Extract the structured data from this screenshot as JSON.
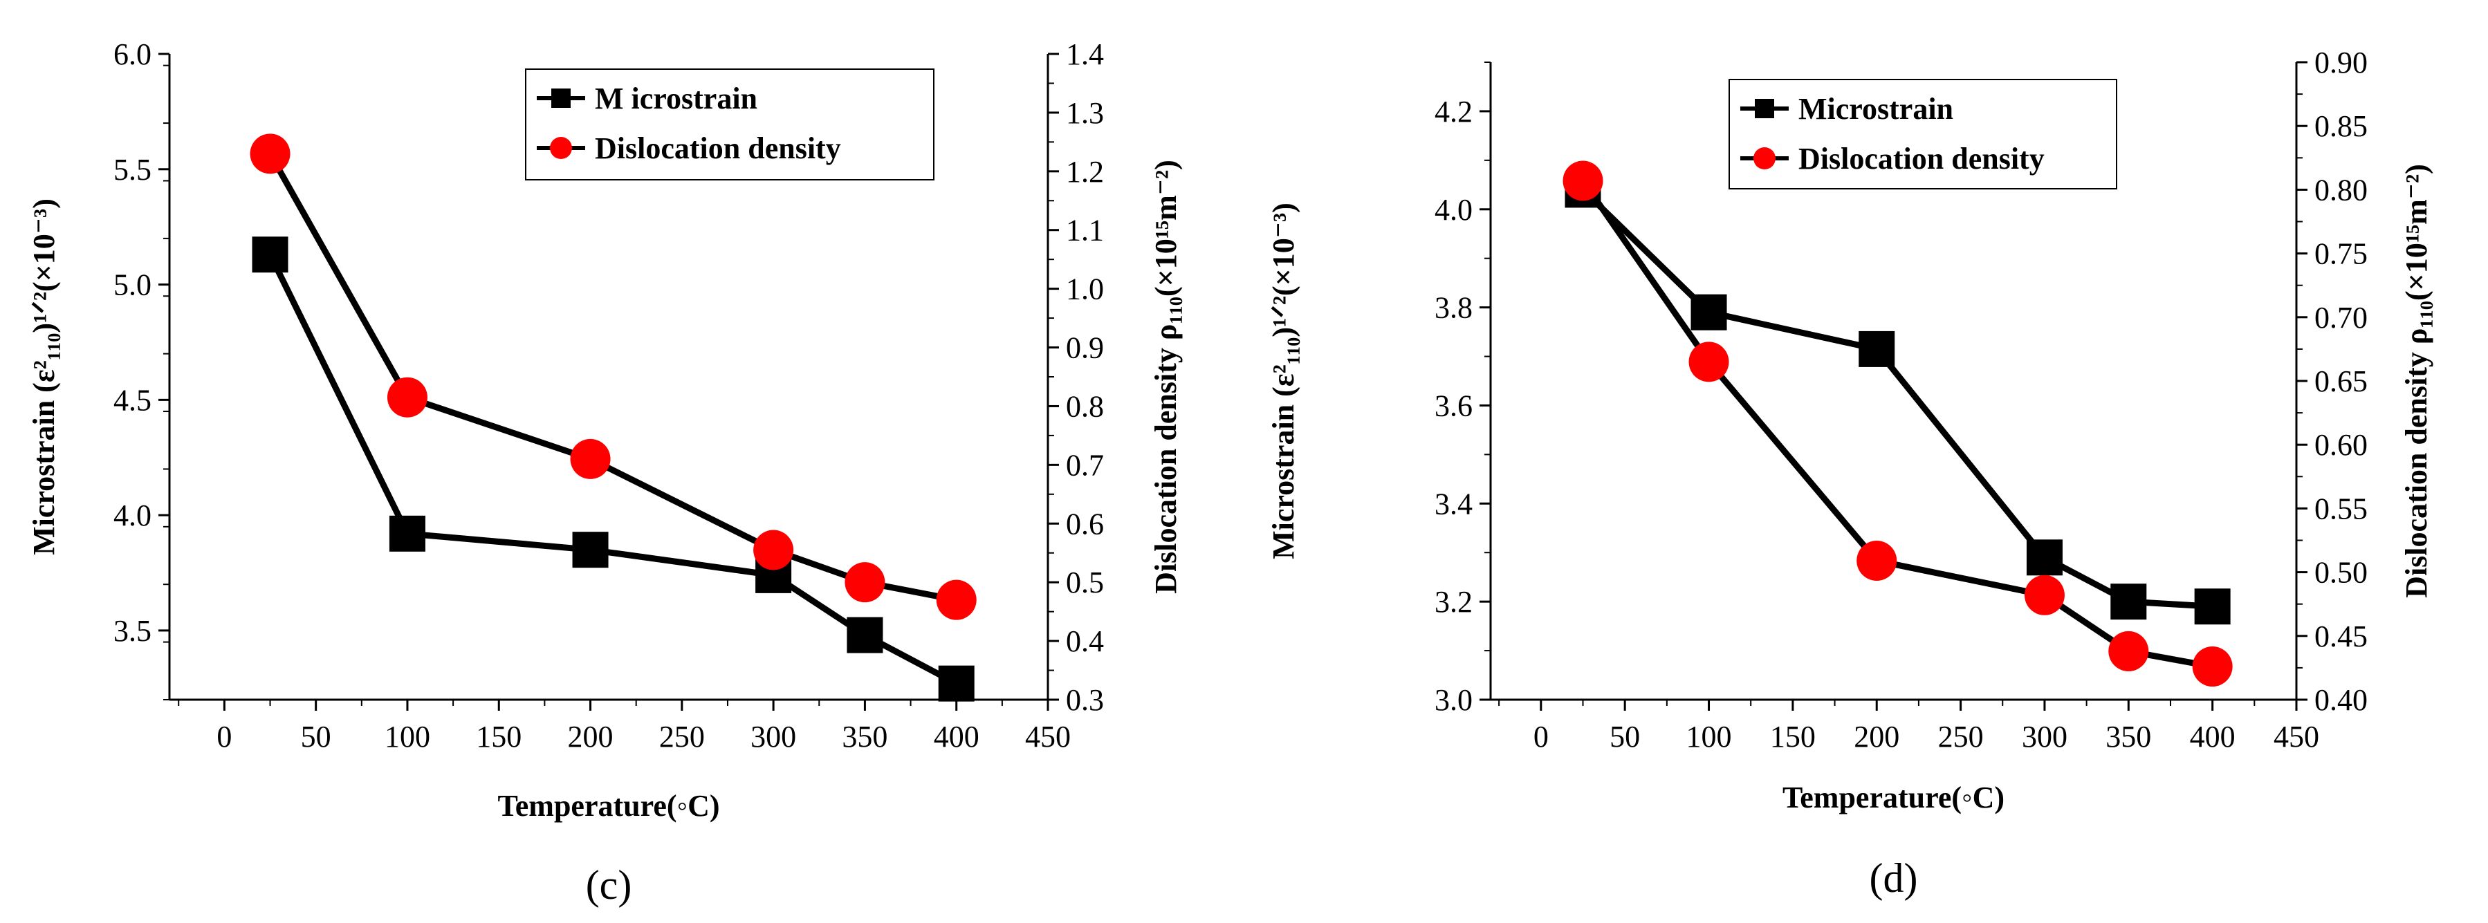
{
  "chart_data": [
    {
      "type": "line",
      "panel_label": "(c)",
      "xlabel": "Temperature(◦C)",
      "x_ticks": [
        "0",
        "50",
        "100",
        "150",
        "200",
        "250",
        "300",
        "350",
        "400",
        "450"
      ],
      "xlim": [
        -30,
        450
      ],
      "ylabel_left": "Microstrain (ε²₁₁₀)¹ᐟ²(×10⁻³)",
      "ylim_left": [
        3.2,
        6.0
      ],
      "y_ticks_left": [
        "3.5",
        "4.0",
        "4.5",
        "5.0",
        "5.5",
        "6.0"
      ],
      "ylabel_right": "Dislocation density ρ₁₁₀(×10¹⁵m⁻²)",
      "ylim_right": [
        0.3,
        1.4
      ],
      "y_ticks_right": [
        "0.3",
        "0.4",
        "0.5",
        "0.6",
        "0.7",
        "0.8",
        "0.9",
        "1.0",
        "1.1",
        "1.2",
        "1.3",
        "1.4"
      ],
      "legend_position": "top-right",
      "series": [
        {
          "name": "M icrostrain",
          "axis": "left",
          "marker": "square",
          "color": "#000000",
          "x": [
            25,
            100,
            200,
            300,
            350,
            400
          ],
          "values": [
            5.13,
            3.92,
            3.85,
            3.74,
            3.48,
            3.27
          ]
        },
        {
          "name": "Dislocation density",
          "axis": "right",
          "marker": "circle",
          "color": "#ff0000",
          "x": [
            25,
            100,
            200,
            300,
            350,
            400
          ],
          "values": [
            1.23,
            0.815,
            0.71,
            0.555,
            0.5,
            0.47
          ]
        }
      ]
    },
    {
      "type": "line",
      "panel_label": "(d)",
      "xlabel": "Temperature(◦C)",
      "x_ticks": [
        "0",
        "50",
        "100",
        "150",
        "200",
        "250",
        "300",
        "350",
        "400",
        "450"
      ],
      "xlim": [
        -30,
        450
      ],
      "ylabel_left": "Microstrain (ε²₁₁₀)¹ᐟ²(×10⁻³)",
      "ylim_left": [
        3.0,
        4.3
      ],
      "y_ticks_left": [
        "3.0",
        "3.2",
        "3.4",
        "3.6",
        "3.8",
        "4.0",
        "4.2"
      ],
      "ylabel_right": "Dislocation density ρ₁₁₀(×10¹⁵m⁻²)",
      "ylim_right": [
        0.4,
        0.9
      ],
      "y_ticks_right": [
        "0.40",
        "0.45",
        "0.50",
        "0.55",
        "0.60",
        "0.65",
        "0.70",
        "0.75",
        "0.80",
        "0.85",
        "0.90"
      ],
      "legend_position": "top-right",
      "series": [
        {
          "name": "Microstrain",
          "axis": "left",
          "marker": "square",
          "color": "#000000",
          "x": [
            25,
            100,
            200,
            300,
            350,
            400
          ],
          "values": [
            4.04,
            3.79,
            3.715,
            3.29,
            3.2,
            3.19
          ]
        },
        {
          "name": "Dislocation density",
          "axis": "right",
          "marker": "circle",
          "color": "#ff0000",
          "x": [
            25,
            100,
            200,
            300,
            350,
            400
          ],
          "values": [
            0.807,
            0.665,
            0.509,
            0.482,
            0.438,
            0.426
          ]
        }
      ]
    }
  ]
}
